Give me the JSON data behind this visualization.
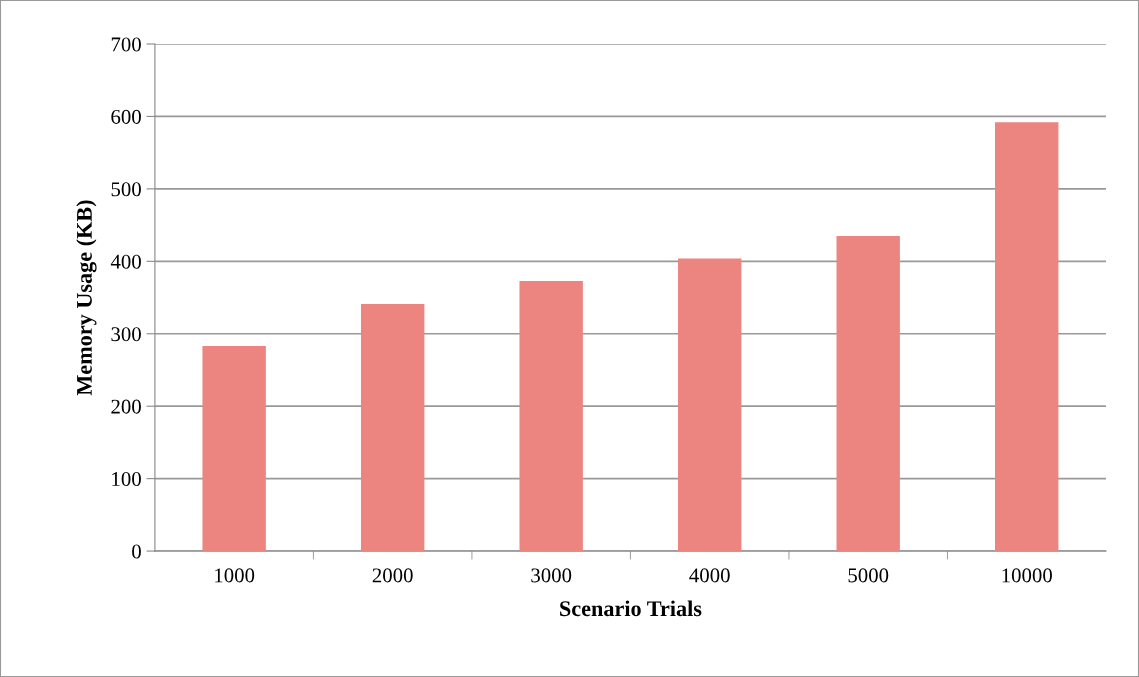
{
  "chart_data": {
    "type": "bar",
    "xlabel": "Scenario Trials",
    "ylabel": "Memory Usage (KB)",
    "categories": [
      "1000",
      "2000",
      "3000",
      "4000",
      "5000",
      "10000"
    ],
    "values": [
      283,
      341,
      373,
      404,
      435,
      592
    ],
    "color": "#ec8580",
    "ylim": [
      0,
      700
    ],
    "yticks": [
      0,
      100,
      200,
      300,
      400,
      500,
      600,
      700
    ],
    "grid": "y"
  }
}
